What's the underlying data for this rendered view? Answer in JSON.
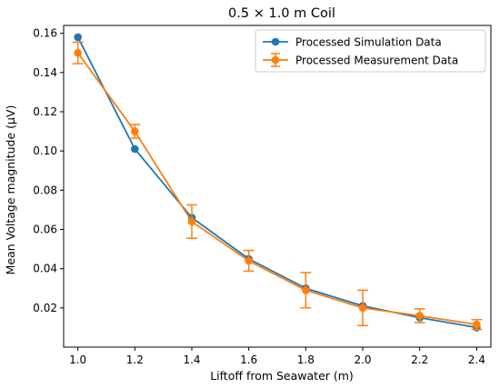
{
  "chart_data": {
    "type": "line",
    "title": "0.5 × 1.0 m Coil",
    "xlabel": "Liftoff from Seawater (m)",
    "ylabel": "Mean Voltage magnitude (µV)",
    "xlim": [
      0.95,
      2.45
    ],
    "ylim": [
      0.0,
      0.164
    ],
    "x_ticks": [
      1.0,
      1.2,
      1.4,
      1.6,
      1.8,
      2.0,
      2.2,
      2.4
    ],
    "x_tick_labels": [
      "1.0",
      "1.2",
      "1.4",
      "1.6",
      "1.8",
      "2.0",
      "2.2",
      "2.4"
    ],
    "y_ticks": [
      0.02,
      0.04,
      0.06,
      0.08,
      0.1,
      0.12,
      0.14,
      0.16
    ],
    "y_tick_labels": [
      "0.02",
      "0.04",
      "0.06",
      "0.08",
      "0.10",
      "0.12",
      "0.14",
      "0.16"
    ],
    "grid": false,
    "legend_position": "upper right",
    "x": [
      1.0,
      1.2,
      1.4,
      1.6,
      1.8,
      2.0,
      2.2,
      2.4
    ],
    "series": [
      {
        "name": "Processed Simulation Data",
        "color": "#1f77b4",
        "marker": "circle",
        "values": [
          0.158,
          0.101,
          0.066,
          0.045,
          0.03,
          0.021,
          0.015,
          0.01
        ],
        "errors": null
      },
      {
        "name": "Processed Measurement Data",
        "color": "#ff7f0e",
        "marker": "circle",
        "values": [
          0.15,
          0.11,
          0.064,
          0.044,
          0.029,
          0.02,
          0.016,
          0.0115
        ],
        "errors": [
          0.0055,
          0.0035,
          0.0085,
          0.0053,
          0.009,
          0.009,
          0.0035,
          0.0025
        ]
      }
    ]
  }
}
